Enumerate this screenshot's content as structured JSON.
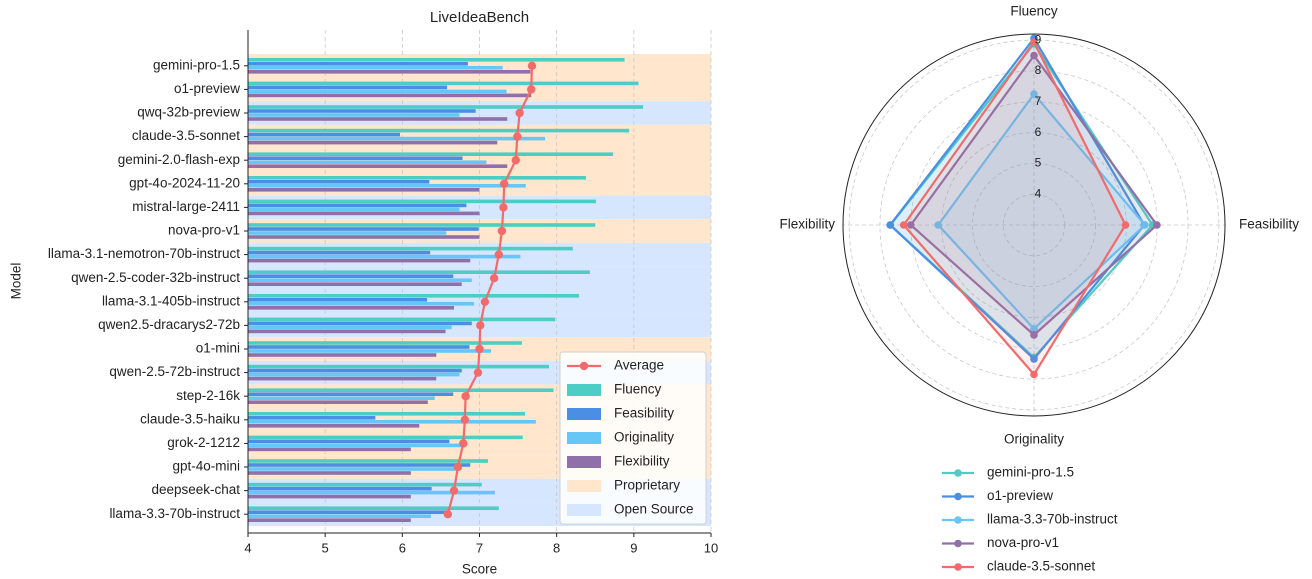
{
  "colors": {
    "average": "#f26b6b",
    "fluency": "#4ecdc4",
    "feasibility": "#4a8fe3",
    "originality": "#66c7f7",
    "flexibility": "#9070a8",
    "proprietary": "#ffe6cc",
    "open_source": "#d6e6ff",
    "radar_models": [
      "#4ecdc4",
      "#4a8fe3",
      "#66c7f7",
      "#9070a8",
      "#f26b6b"
    ]
  },
  "chart_data": [
    {
      "type": "bar",
      "orientation": "horizontal",
      "title": "LiveIdeaBench",
      "xlabel": "Score",
      "ylabel": "Model",
      "xlim": [
        4,
        10
      ],
      "xticks": [
        4,
        5,
        6,
        7,
        8,
        9,
        10
      ],
      "grid": true,
      "legend_position": "lower-right",
      "legend": [
        "Average",
        "Fluency",
        "Feasibility",
        "Originality",
        "Flexibility",
        "Proprietary",
        "Open Source"
      ],
      "categories": [
        "gemini-pro-1.5",
        "o1-preview",
        "qwq-32b-preview",
        "claude-3.5-sonnet",
        "gemini-2.0-flash-exp",
        "gpt-4o-2024-11-20",
        "mistral-large-2411",
        "nova-pro-v1",
        "llama-3.1-nemotron-70b-instruct",
        "qwen-2.5-coder-32b-instruct",
        "llama-3.1-405b-instruct",
        "qwen2.5-dracarys2-72b",
        "o1-mini",
        "qwen-2.5-72b-instruct",
        "step-2-16k",
        "claude-3.5-haiku",
        "grok-2-1212",
        "gpt-4o-mini",
        "deepseek-chat",
        "llama-3.3-70b-instruct"
      ],
      "group": [
        "Proprietary",
        "Proprietary",
        "Open Source",
        "Proprietary",
        "Proprietary",
        "Proprietary",
        "Open Source",
        "Proprietary",
        "Open Source",
        "Open Source",
        "Open Source",
        "Open Source",
        "Proprietary",
        "Open Source",
        "Proprietary",
        "Proprietary",
        "Proprietary",
        "Proprietary",
        "Open Source",
        "Open Source"
      ],
      "series": [
        {
          "name": "Average",
          "kind": "line",
          "values": [
            7.68,
            7.67,
            7.52,
            7.49,
            7.47,
            7.32,
            7.31,
            7.29,
            7.25,
            7.19,
            7.07,
            7.01,
            7.0,
            6.98,
            6.82,
            6.81,
            6.79,
            6.72,
            6.67,
            6.59
          ]
        },
        {
          "name": "Fluency",
          "values": [
            8.88,
            9.06,
            9.12,
            8.94,
            8.73,
            8.38,
            8.51,
            8.5,
            8.21,
            8.43,
            8.29,
            7.98,
            7.55,
            7.9,
            7.96,
            7.59,
            7.56,
            7.11,
            7.03,
            7.25
          ]
        },
        {
          "name": "Feasibility",
          "values": [
            6.85,
            6.58,
            6.95,
            5.97,
            6.78,
            6.35,
            6.83,
            6.99,
            6.36,
            6.66,
            6.32,
            6.9,
            6.87,
            6.77,
            6.66,
            5.65,
            6.61,
            6.88,
            6.38,
            6.6
          ]
        },
        {
          "name": "Originality",
          "values": [
            7.3,
            7.35,
            6.74,
            7.85,
            7.09,
            7.6,
            6.74,
            6.57,
            7.53,
            6.9,
            6.93,
            6.64,
            7.15,
            6.74,
            6.42,
            7.73,
            6.8,
            6.7,
            7.2,
            6.37
          ]
        },
        {
          "name": "Flexibility",
          "values": [
            7.66,
            7.67,
            7.36,
            7.23,
            7.36,
            7.0,
            7.0,
            7.0,
            6.88,
            6.77,
            6.67,
            6.56,
            6.44,
            6.44,
            6.33,
            6.22,
            6.11,
            6.11,
            6.11,
            6.11
          ]
        }
      ]
    },
    {
      "type": "radar",
      "axes": [
        "Fluency",
        "Feasibility",
        "Originality",
        "Flexibility"
      ],
      "rlim": [
        3,
        9.2
      ],
      "rticks": [
        4,
        5,
        6,
        7,
        8,
        9
      ],
      "grid": true,
      "legend_position": "bottom",
      "series": [
        {
          "name": "gemini-pro-1.5",
          "values": [
            8.88,
            6.85,
            7.3,
            7.66
          ]
        },
        {
          "name": "o1-preview",
          "values": [
            9.06,
            6.58,
            7.35,
            7.67
          ]
        },
        {
          "name": "llama-3.3-70b-instruct",
          "values": [
            7.25,
            6.6,
            6.37,
            6.11
          ]
        },
        {
          "name": "nova-pro-v1",
          "values": [
            8.5,
            6.99,
            6.57,
            7.0
          ]
        },
        {
          "name": "claude-3.5-sonnet",
          "values": [
            8.94,
            5.97,
            7.85,
            7.23
          ]
        }
      ]
    }
  ]
}
